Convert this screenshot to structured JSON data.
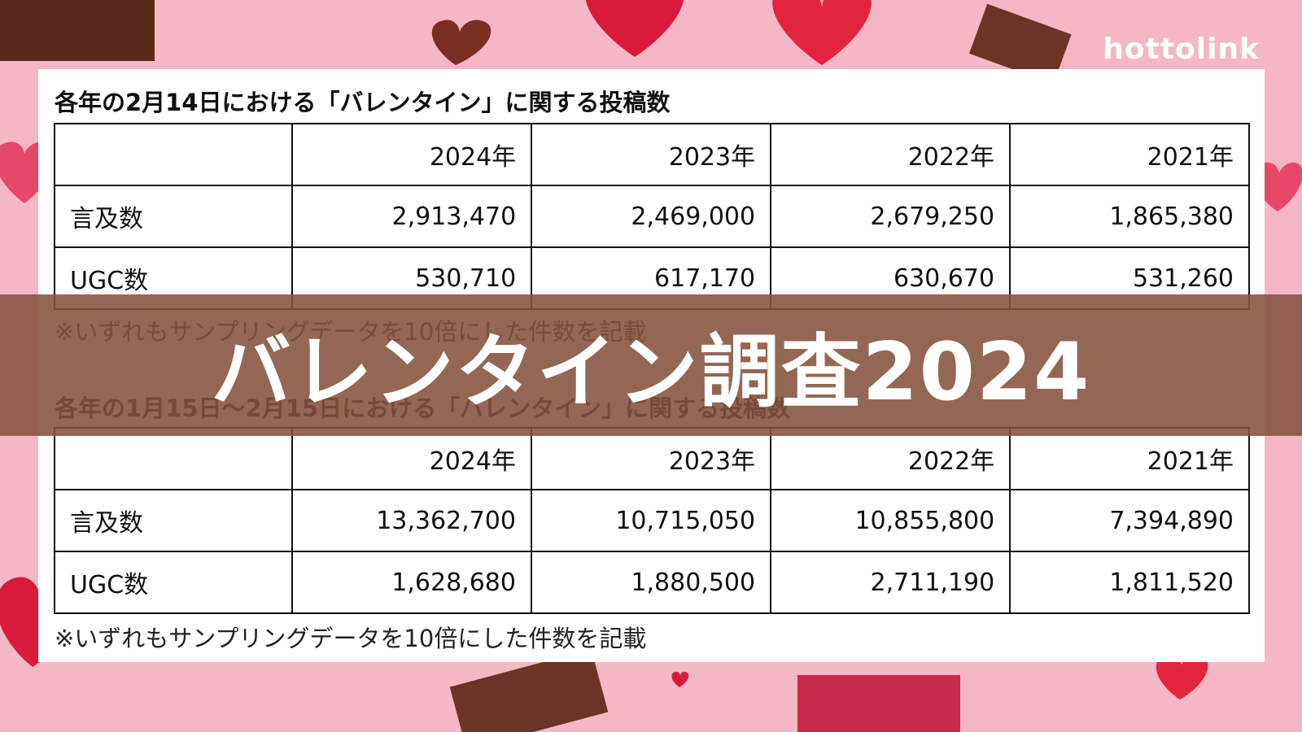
{
  "brand": "hottolink",
  "banner": "バレンタイン調査2024",
  "tables": [
    {
      "title": "各年の2月14日における「バレンタイン」に関する投稿数",
      "columns": [
        "2024年",
        "2023年",
        "2022年",
        "2021年"
      ],
      "rows": [
        {
          "label": "言及数",
          "cells": [
            "2,913,470",
            "2,469,000",
            "2,679,250",
            "1,865,380"
          ]
        },
        {
          "label": "UGC数",
          "cells": [
            "530,710",
            "617,170",
            "630,670",
            "531,260"
          ]
        }
      ],
      "note": "※いずれもサンプリングデータを10倍にした件数を記載"
    },
    {
      "title": "各年の1月15日～2月15日における「バレンタイン」に関する投稿数",
      "columns": [
        "2024年",
        "2023年",
        "2022年",
        "2021年"
      ],
      "rows": [
        {
          "label": "言及数",
          "cells": [
            "13,362,700",
            "10,715,050",
            "10,855,800",
            "7,394,890"
          ]
        },
        {
          "label": "UGC数",
          "cells": [
            "1,628,680",
            "1,880,500",
            "2,711,190",
            "1,811,520"
          ]
        }
      ],
      "note": "※いずれもサンプリングデータを10倍にした件数を記載"
    }
  ]
}
